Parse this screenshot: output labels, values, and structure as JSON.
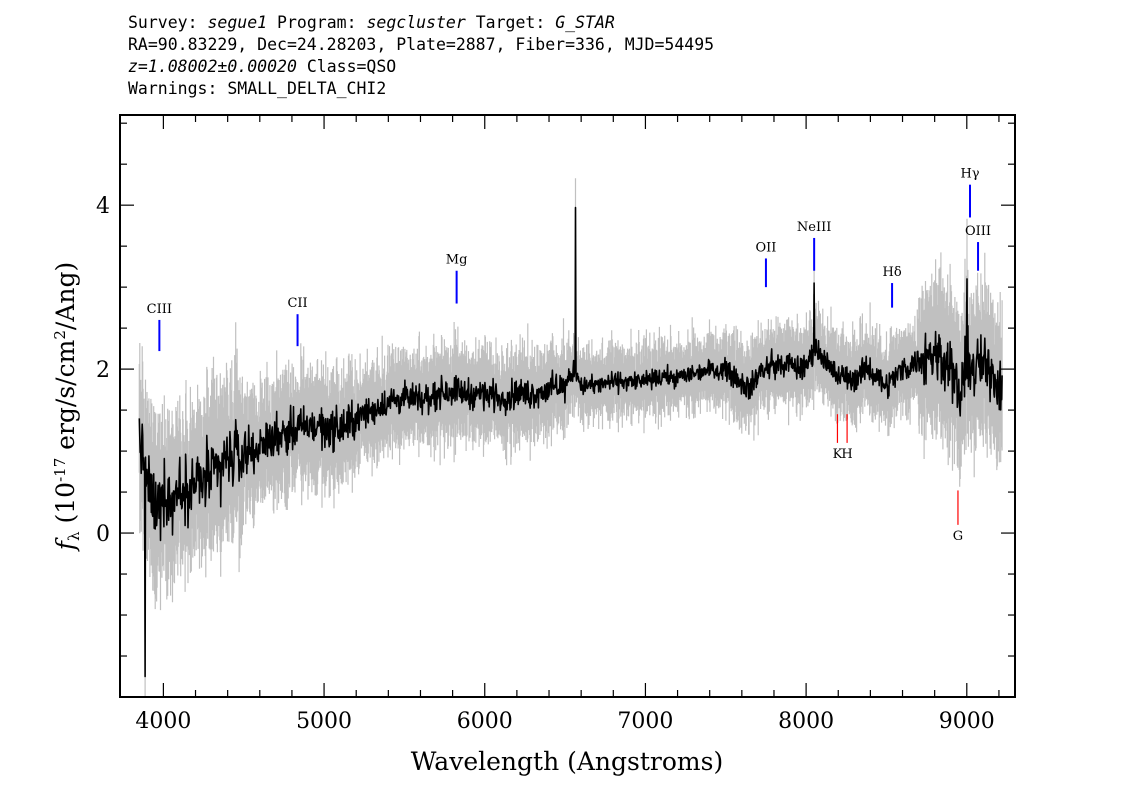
{
  "header": {
    "survey_label": "Survey:",
    "survey": "segue1",
    "program_label": "Program:",
    "program": "segcluster",
    "target_label": "Target:",
    "target": "G_STAR",
    "coords": "RA=90.83229, Dec=24.28203, Plate=2887, Fiber=336, MJD=54495",
    "z": "z=1.08002±0.00020",
    "class": "Class=QSO",
    "warnings": "Warnings: SMALL_DELTA_CHI2"
  },
  "chart_data": {
    "type": "line",
    "xlabel": "Wavelength (Angstroms)",
    "ylabel": "f_λ (10^-17 erg/s/cm^2/Ang)",
    "xlim": [
      3730,
      9300
    ],
    "ylim": [
      -2.0,
      5.1
    ],
    "x_ticks": [
      4000,
      5000,
      6000,
      7000,
      8000,
      9000
    ],
    "y_ticks": [
      0,
      2,
      4
    ],
    "grid": false,
    "colors": {
      "flux": "#000000",
      "error_band": "#c0c0c0",
      "emission_lines": "#0000ff",
      "absorption_lines": "#ff0000"
    },
    "series": [
      {
        "role": "smoothed flux",
        "x": [
          3850,
          3900,
          3950,
          4000,
          4050,
          4100,
          4200,
          4300,
          4400,
          4500,
          4600,
          4700,
          4800,
          4900,
          5000,
          5100,
          5200,
          5300,
          5400,
          5500,
          5600,
          5700,
          5800,
          5900,
          6000,
          6100,
          6200,
          6300,
          6400,
          6500,
          6560,
          6600,
          6700,
          6800,
          6900,
          7000,
          7100,
          7200,
          7300,
          7400,
          7500,
          7600,
          7650,
          7700,
          7800,
          7900,
          8000,
          8050,
          8100,
          8200,
          8300,
          8400,
          8500,
          8600,
          8700,
          8800,
          8900,
          8950,
          9000,
          9050,
          9100,
          9150,
          9200,
          9220
        ],
        "y": [
          1.2,
          0.6,
          0.3,
          0.5,
          0.4,
          0.55,
          0.6,
          0.7,
          0.9,
          1.0,
          1.05,
          1.2,
          1.25,
          1.3,
          1.3,
          1.25,
          1.4,
          1.5,
          1.6,
          1.65,
          1.6,
          1.7,
          1.75,
          1.7,
          1.7,
          1.65,
          1.7,
          1.7,
          1.75,
          1.8,
          2.0,
          1.8,
          1.8,
          1.85,
          1.85,
          1.85,
          1.9,
          1.9,
          1.95,
          2.0,
          2.0,
          1.85,
          1.75,
          1.95,
          2.05,
          2.05,
          2.0,
          2.3,
          2.15,
          1.9,
          1.9,
          2.0,
          1.8,
          2.0,
          2.1,
          2.2,
          2.1,
          1.6,
          2.1,
          2.0,
          2.05,
          2.0,
          1.8,
          1.9
        ]
      }
    ],
    "emission_lines": [
      {
        "label": "CIII",
        "x": 3975,
        "y_bottom": 2.22,
        "y_top": 2.6
      },
      {
        "label": "CII",
        "x": 4835,
        "y_bottom": 2.28,
        "y_top": 2.67
      },
      {
        "label": "Mg",
        "x": 5825,
        "y_bottom": 2.8,
        "y_top": 3.2
      },
      {
        "label": "OII",
        "x": 7750,
        "y_bottom": 3.0,
        "y_top": 3.35
      },
      {
        "label": "NeIII",
        "x": 8050,
        "y_bottom": 3.2,
        "y_top": 3.6
      },
      {
        "label": "Hδ",
        "x": 8535,
        "y_bottom": 2.75,
        "y_top": 3.05
      },
      {
        "label": "Hγ",
        "x": 9020,
        "y_bottom": 3.85,
        "y_top": 4.25
      },
      {
        "label": "OIII",
        "x": 9070,
        "y_bottom": 3.2,
        "y_top": 3.55
      }
    ],
    "absorption_lines": [
      {
        "label": "K",
        "x": 8195,
        "y_bottom": 1.1,
        "y_top": 1.45
      },
      {
        "label": "H",
        "x": 8255,
        "y_bottom": 1.1,
        "y_top": 1.45
      },
      {
        "label": "G",
        "x": 8945,
        "y_bottom": 0.1,
        "y_top": 0.52
      }
    ],
    "spikes": [
      {
        "x": 6565,
        "y": 3.97
      },
      {
        "x": 3885,
        "y": -1.75
      },
      {
        "x": 8050,
        "y": 3.05
      },
      {
        "x": 9000,
        "y": 3.1
      }
    ]
  }
}
